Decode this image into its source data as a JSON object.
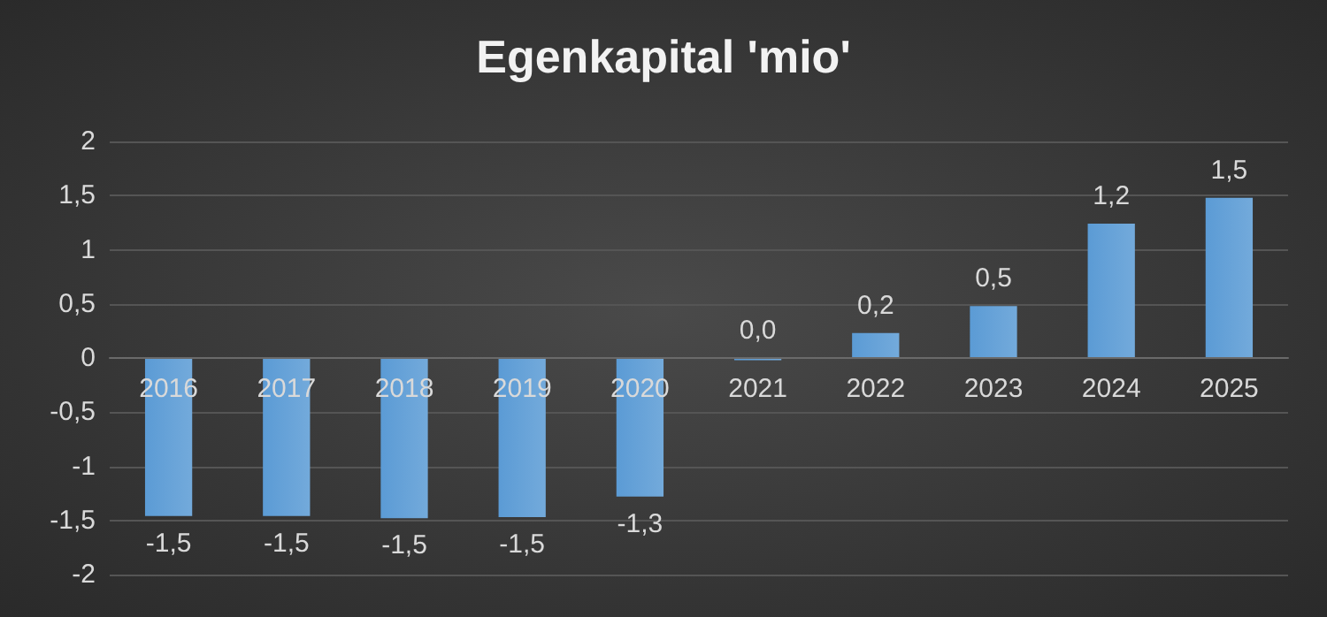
{
  "chart_data": {
    "type": "bar",
    "title": "Egenkapital 'mio'",
    "categories": [
      "2016",
      "2017",
      "2018",
      "2019",
      "2020",
      "2021",
      "2022",
      "2023",
      "2024",
      "2025"
    ],
    "values": [
      -1.46,
      -1.46,
      -1.48,
      -1.47,
      -1.28,
      -0.02,
      0.23,
      0.48,
      1.24,
      1.48
    ],
    "value_labels": [
      "-1,5",
      "-1,5",
      "-1,5",
      "-1,5",
      "-1,3",
      "0,0",
      "0,2",
      "0,5",
      "1,2",
      "1,5"
    ],
    "color": "#5b9bd5",
    "ylim": [
      -2,
      2
    ],
    "yticks": [
      {
        "value": -2,
        "label": "-2"
      },
      {
        "value": -1.5,
        "label": "-1,5"
      },
      {
        "value": -1,
        "label": "-1"
      },
      {
        "value": -0.5,
        "label": "-0,5"
      },
      {
        "value": 0,
        "label": "0"
      },
      {
        "value": 0.5,
        "label": "0,5"
      },
      {
        "value": 1,
        "label": "1"
      },
      {
        "value": 1.5,
        "label": "1,5"
      },
      {
        "value": 2,
        "label": "2"
      }
    ],
    "grid": true
  }
}
